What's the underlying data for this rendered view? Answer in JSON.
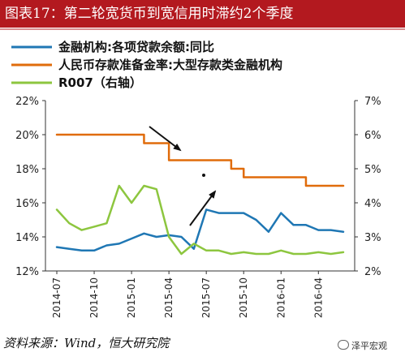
{
  "title": "图表17：第二轮宽货币到宽信用时滞约2个季度",
  "source": "资料来源：Wind，恒大研究院",
  "watermark": "泽平宏观",
  "colors": {
    "title_bg": "#b3191f",
    "loan_growth": "#1f77b4",
    "rrr": "#e06c0b",
    "r007": "#8dc63f",
    "arrow": "#111111"
  },
  "chart_data": {
    "type": "line",
    "legend_position": "top",
    "x": [
      "2014-07",
      "2014-08",
      "2014-09",
      "2014-10",
      "2014-11",
      "2014-12",
      "2015-01",
      "2015-02",
      "2015-03",
      "2015-04",
      "2015-05",
      "2015-06",
      "2015-07",
      "2015-08",
      "2015-09",
      "2015-10",
      "2015-11",
      "2015-12",
      "2016-01",
      "2016-02",
      "2016-03",
      "2016-04",
      "2016-05",
      "2016-06"
    ],
    "x_tick_labels": [
      "2014-07",
      "2014-10",
      "2015-01",
      "2015-04",
      "2015-07",
      "2015-10",
      "2016-01",
      "2016-04"
    ],
    "left_axis": {
      "ylim": [
        12,
        22
      ],
      "ticks": [
        "12%",
        "14%",
        "16%",
        "18%",
        "20%",
        "22%"
      ]
    },
    "right_axis": {
      "ylim": [
        2,
        7
      ],
      "ticks": [
        "2%",
        "3%",
        "4%",
        "5%",
        "6%",
        "7%"
      ]
    },
    "series": [
      {
        "name": "金融机构:各项贷款余额:同比",
        "axis": "left",
        "color": "#1f77b4",
        "values": [
          13.4,
          13.3,
          13.2,
          13.2,
          13.5,
          13.6,
          13.9,
          14.2,
          14.0,
          14.1,
          14.0,
          13.3,
          15.6,
          15.4,
          15.4,
          15.4,
          15.0,
          14.3,
          15.4,
          14.7,
          14.7,
          14.4,
          14.4,
          14.3
        ]
      },
      {
        "name": "人民币存款准备金率:大型存款类金融机构",
        "axis": "left",
        "color": "#e06c0b",
        "values": [
          20.0,
          20.0,
          20.0,
          20.0,
          20.0,
          20.0,
          20.0,
          19.5,
          19.5,
          18.5,
          18.5,
          18.5,
          18.5,
          18.5,
          18.0,
          17.5,
          17.5,
          17.5,
          17.5,
          17.5,
          17.0,
          17.0,
          17.0,
          17.0
        ]
      },
      {
        "name": "R007（右轴）",
        "axis": "right",
        "color": "#8dc63f",
        "values": [
          3.8,
          3.4,
          3.2,
          3.3,
          3.4,
          4.5,
          4.0,
          4.5,
          4.4,
          3.0,
          2.5,
          2.8,
          2.6,
          2.6,
          2.5,
          2.55,
          2.5,
          2.5,
          2.6,
          2.5,
          2.5,
          2.55,
          2.5,
          2.55
        ]
      }
    ],
    "annotations": [
      "down-arrow",
      "up-arrow",
      "dot"
    ]
  }
}
